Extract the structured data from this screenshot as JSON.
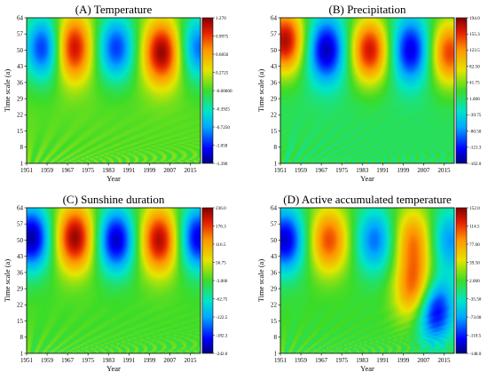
{
  "chart_data": [
    {
      "type": "heatmap",
      "title": "(A) Temperature",
      "xlabel": "Year",
      "ylabel": "Time scale (a)",
      "x_ticks": [
        "1951",
        "1959",
        "1967",
        "1975",
        "1983",
        "1991",
        "1999",
        "2007",
        "2015"
      ],
      "y_ticks": [
        "1",
        "8",
        "15",
        "22",
        "29",
        "36",
        "43",
        "50",
        "57",
        "64"
      ],
      "colorbar_ticks": [
        "1.270",
        "0.9975",
        "0.6850",
        "0.2725",
        "-0.00000",
        "-0.3925",
        "-0.7250",
        "-1.058",
        "-1.390"
      ],
      "extrema": [
        {
          "year": 1958,
          "scale": 51,
          "value": -1.1
        },
        {
          "year": 1969,
          "scale": 51,
          "value": 1.2
        },
        {
          "year": 1986,
          "scale": 51,
          "value": -1.0
        },
        {
          "year": 2004,
          "scale": 49,
          "value": 1.25
        },
        {
          "year": 2018,
          "scale": 51,
          "value": -0.9
        }
      ]
    },
    {
      "type": "heatmap",
      "title": "(B) Precipitation",
      "xlabel": "Year",
      "ylabel": "Time scale (a)",
      "x_ticks": [
        "1951",
        "1959",
        "1967",
        "1975",
        "1983",
        "1991",
        "1999",
        "2007",
        "2015"
      ],
      "y_ticks": [
        "1",
        "8",
        "15",
        "22",
        "29",
        "36",
        "43",
        "50",
        "57",
        "64"
      ],
      "colorbar_ticks": [
        "194.0",
        "155.3",
        "123.5",
        "82.50",
        "41.75",
        "1.000",
        "-39.75",
        "-80.50",
        "-121.3",
        "-162.0"
      ],
      "extrema": [
        {
          "year": 1953,
          "scale": 54,
          "value": 180
        },
        {
          "year": 1969,
          "scale": 50,
          "value": -150
        },
        {
          "year": 1986,
          "scale": 50,
          "value": 170
        },
        {
          "year": 2002,
          "scale": 50,
          "value": -140
        },
        {
          "year": 2017,
          "scale": 49,
          "value": 150
        }
      ]
    },
    {
      "type": "heatmap",
      "title": "(C) Sunshine duration",
      "xlabel": "Year",
      "ylabel": "Time scale (a)",
      "x_ticks": [
        "1951",
        "1959",
        "1967",
        "1975",
        "1983",
        "1991",
        "1999",
        "2007",
        "2015"
      ],
      "y_ticks": [
        "1",
        "8",
        "15",
        "22",
        "29",
        "36",
        "43",
        "50",
        "57",
        "64"
      ],
      "colorbar_ticks": [
        "236.0",
        "176.3",
        "116.5",
        "56.75",
        "-3.000",
        "-62.75",
        "-122.5",
        "-182.3",
        "-242.0"
      ],
      "extrema": [
        {
          "year": 1953,
          "scale": 51,
          "value": -230
        },
        {
          "year": 1970,
          "scale": 51,
          "value": 230
        },
        {
          "year": 1986,
          "scale": 50,
          "value": -220
        },
        {
          "year": 2003,
          "scale": 50,
          "value": 220
        },
        {
          "year": 2018,
          "scale": 51,
          "value": -210
        }
      ]
    },
    {
      "type": "heatmap",
      "title": "(D) Active accumulated temperature",
      "xlabel": "Year",
      "ylabel": "Time scale (a)",
      "x_ticks": [
        "1951",
        "1959",
        "1967",
        "1975",
        "1983",
        "1991",
        "1999",
        "2007",
        "2015"
      ],
      "y_ticks": [
        "1",
        "8",
        "15",
        "22",
        "29",
        "36",
        "43",
        "50",
        "57",
        "64"
      ],
      "colorbar_ticks": [
        "152.0",
        "114.5",
        "77.00",
        "39.50",
        "2.000",
        "-35.50",
        "-73.00",
        "-110.5",
        "-148.0"
      ],
      "extrema": [
        {
          "year": 1953,
          "scale": 50,
          "value": -130
        },
        {
          "year": 1970,
          "scale": 50,
          "value": 110
        },
        {
          "year": 1988,
          "scale": 50,
          "value": -90
        },
        {
          "year": 2003,
          "scale": 50,
          "value": 90
        },
        {
          "year": 2004,
          "scale": 28,
          "value": 120
        },
        {
          "year": 2011,
          "scale": 20,
          "value": -145
        },
        {
          "year": 2017,
          "scale": 50,
          "value": -80
        }
      ]
    }
  ]
}
